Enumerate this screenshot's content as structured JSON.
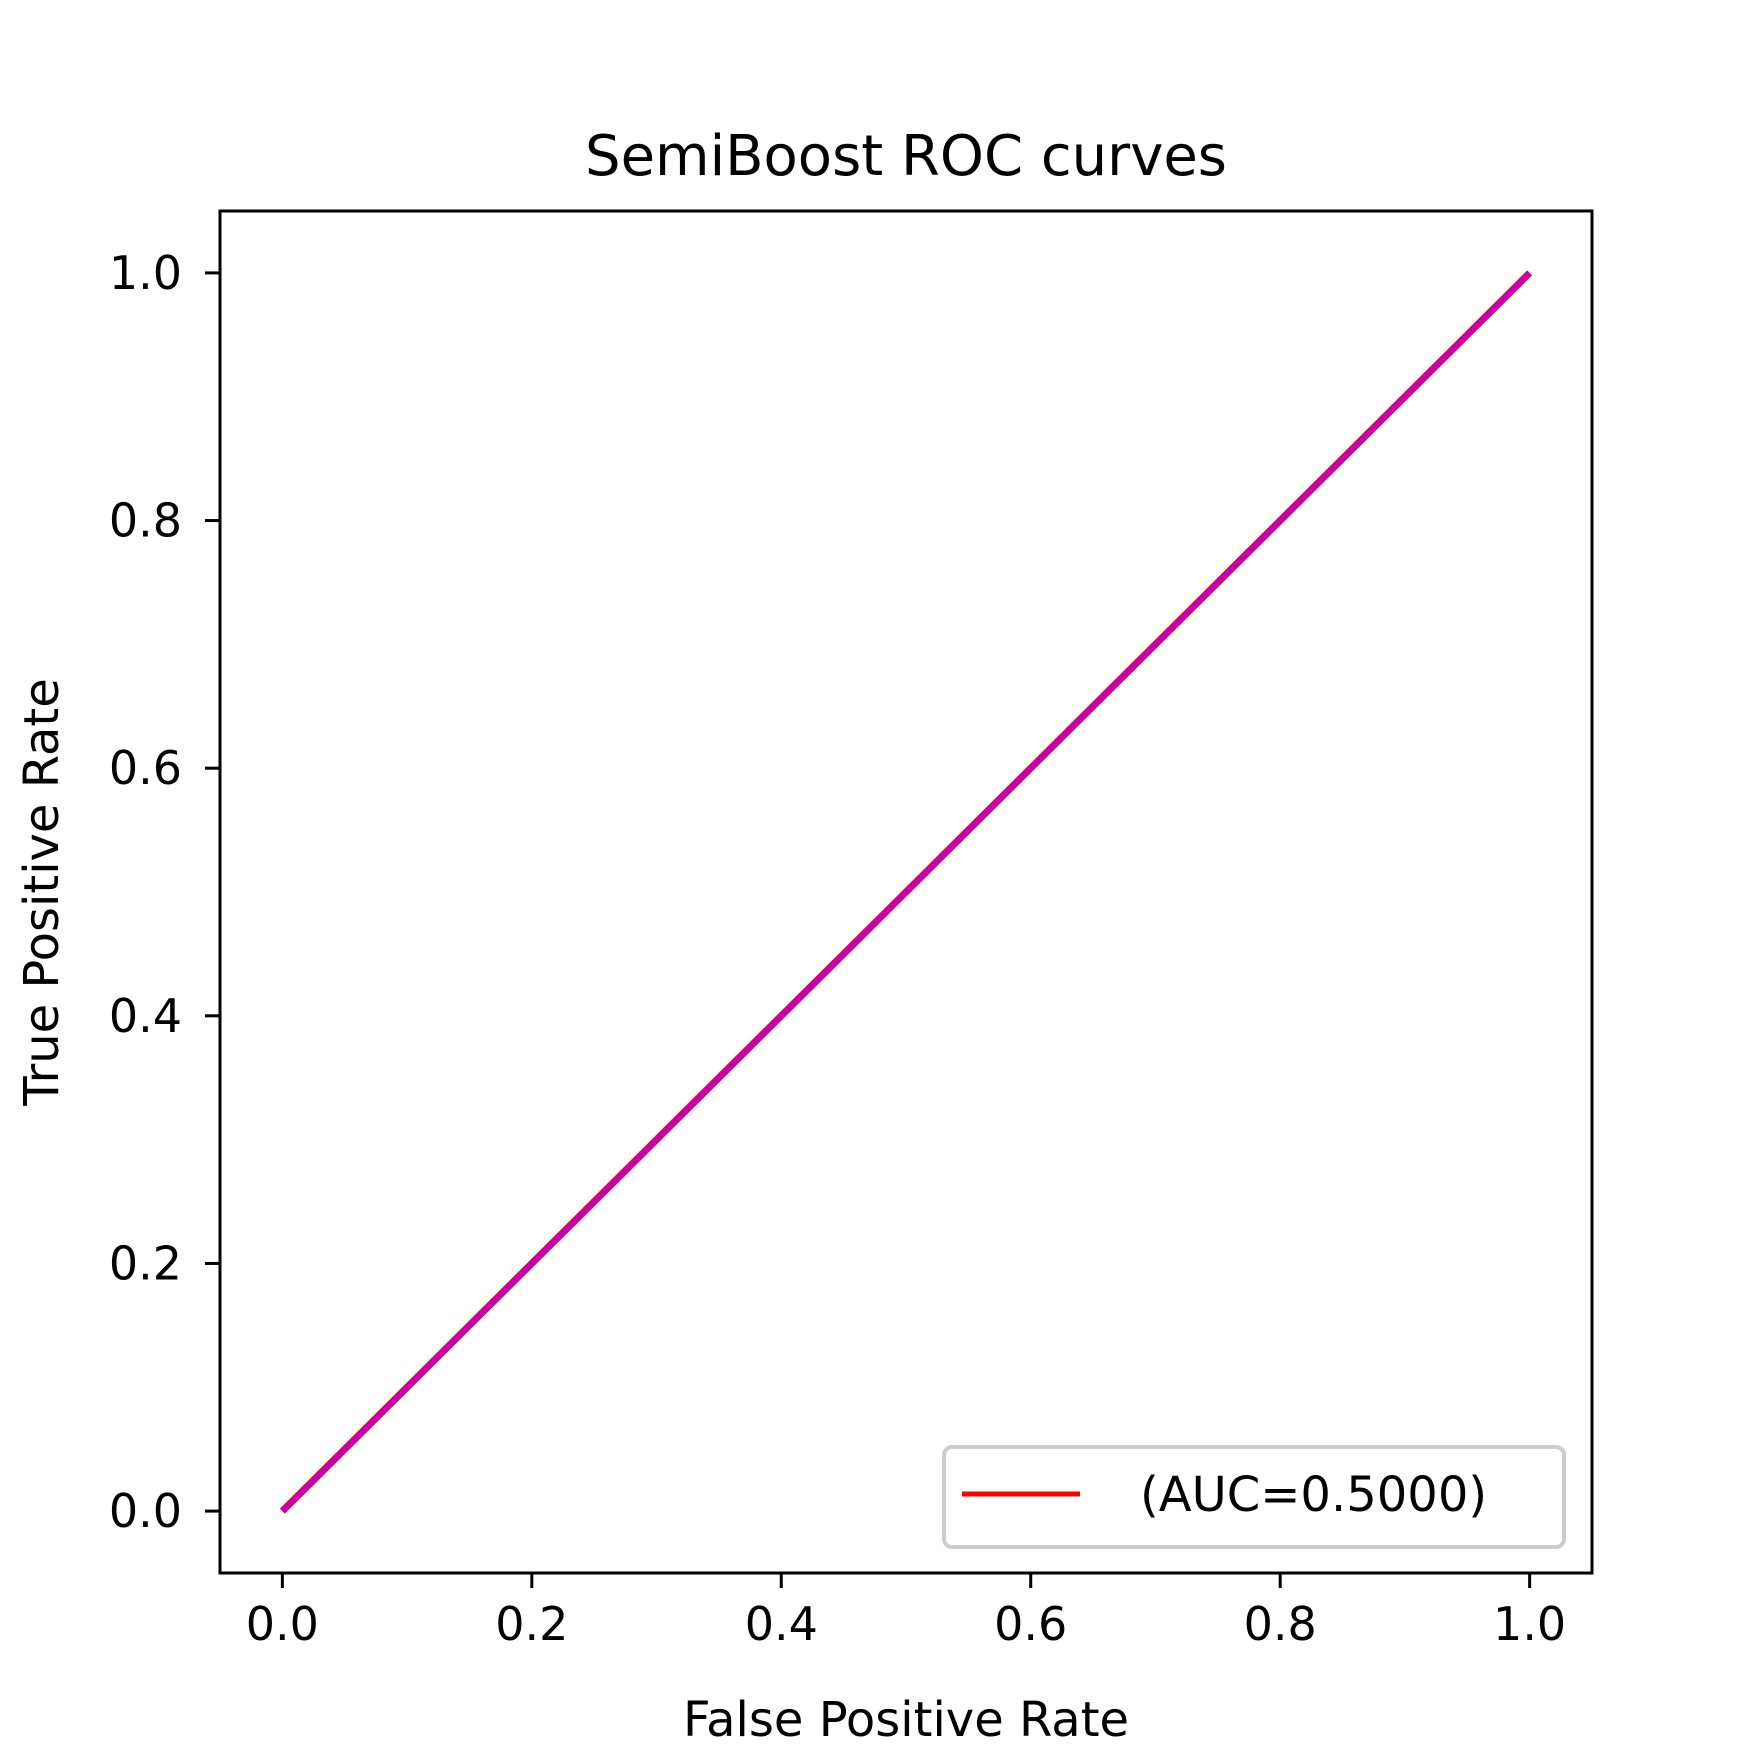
{
  "chart_data": {
    "type": "line",
    "title": "SemiBoost ROC curves",
    "xlabel": "False Positive Rate",
    "ylabel": "True Positive Rate",
    "xlim": [
      -0.05,
      1.05
    ],
    "ylim": [
      -0.05,
      1.05
    ],
    "xticks": [
      "0.0",
      "0.2",
      "0.4",
      "0.6",
      "0.8",
      "1.0"
    ],
    "yticks": [
      "0.0",
      "0.2",
      "0.4",
      "0.6",
      "0.8",
      "1.0"
    ],
    "grid": false,
    "legend_position": "lower-right",
    "series": [
      {
        "name": "(AUC=0.5000)",
        "color": "#ff0000",
        "x": [
          0,
          1
        ],
        "y": [
          0,
          1
        ],
        "in_legend": true
      },
      {
        "color": "#c000c0",
        "x": [
          0,
          1
        ],
        "y": [
          0,
          1
        ],
        "in_legend": false
      }
    ]
  }
}
